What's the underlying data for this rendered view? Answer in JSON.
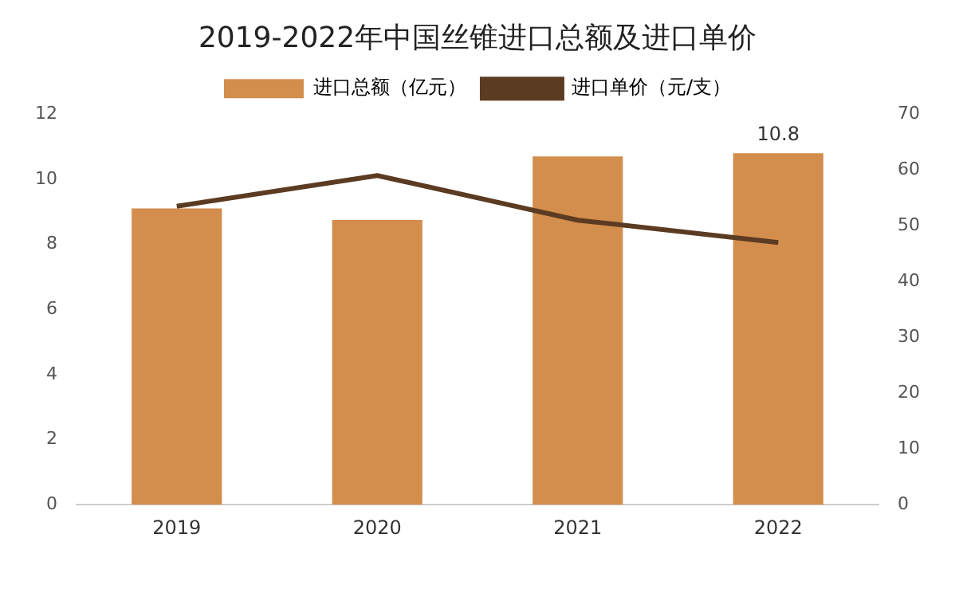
{
  "chart_data": {
    "type": "bar",
    "title": "2019-2022年中国丝锥进口总额及进口单价",
    "categories": [
      "2019",
      "2020",
      "2021",
      "2022"
    ],
    "series": [
      {
        "name": "进口总额（亿元）",
        "color": "#d38d4c",
        "values": [
          9.1,
          8.75,
          10.7,
          10.8
        ],
        "value_labels": [
          null,
          null,
          null,
          "10.8"
        ]
      },
      {
        "name": "进口单价（元/支）",
        "type": "line",
        "axis": "y2",
        "color": "#5b3b22",
        "values": [
          53.5,
          59,
          51,
          47
        ]
      }
    ],
    "ylim": [
      0,
      12
    ],
    "yticks": [
      0,
      2,
      4,
      6,
      8,
      10,
      12
    ],
    "y2lim": [
      0,
      70
    ],
    "y2ticks": [
      0,
      10,
      20,
      30,
      40,
      50,
      60,
      70
    ],
    "grid": false,
    "legend": "top",
    "marker": "none"
  }
}
